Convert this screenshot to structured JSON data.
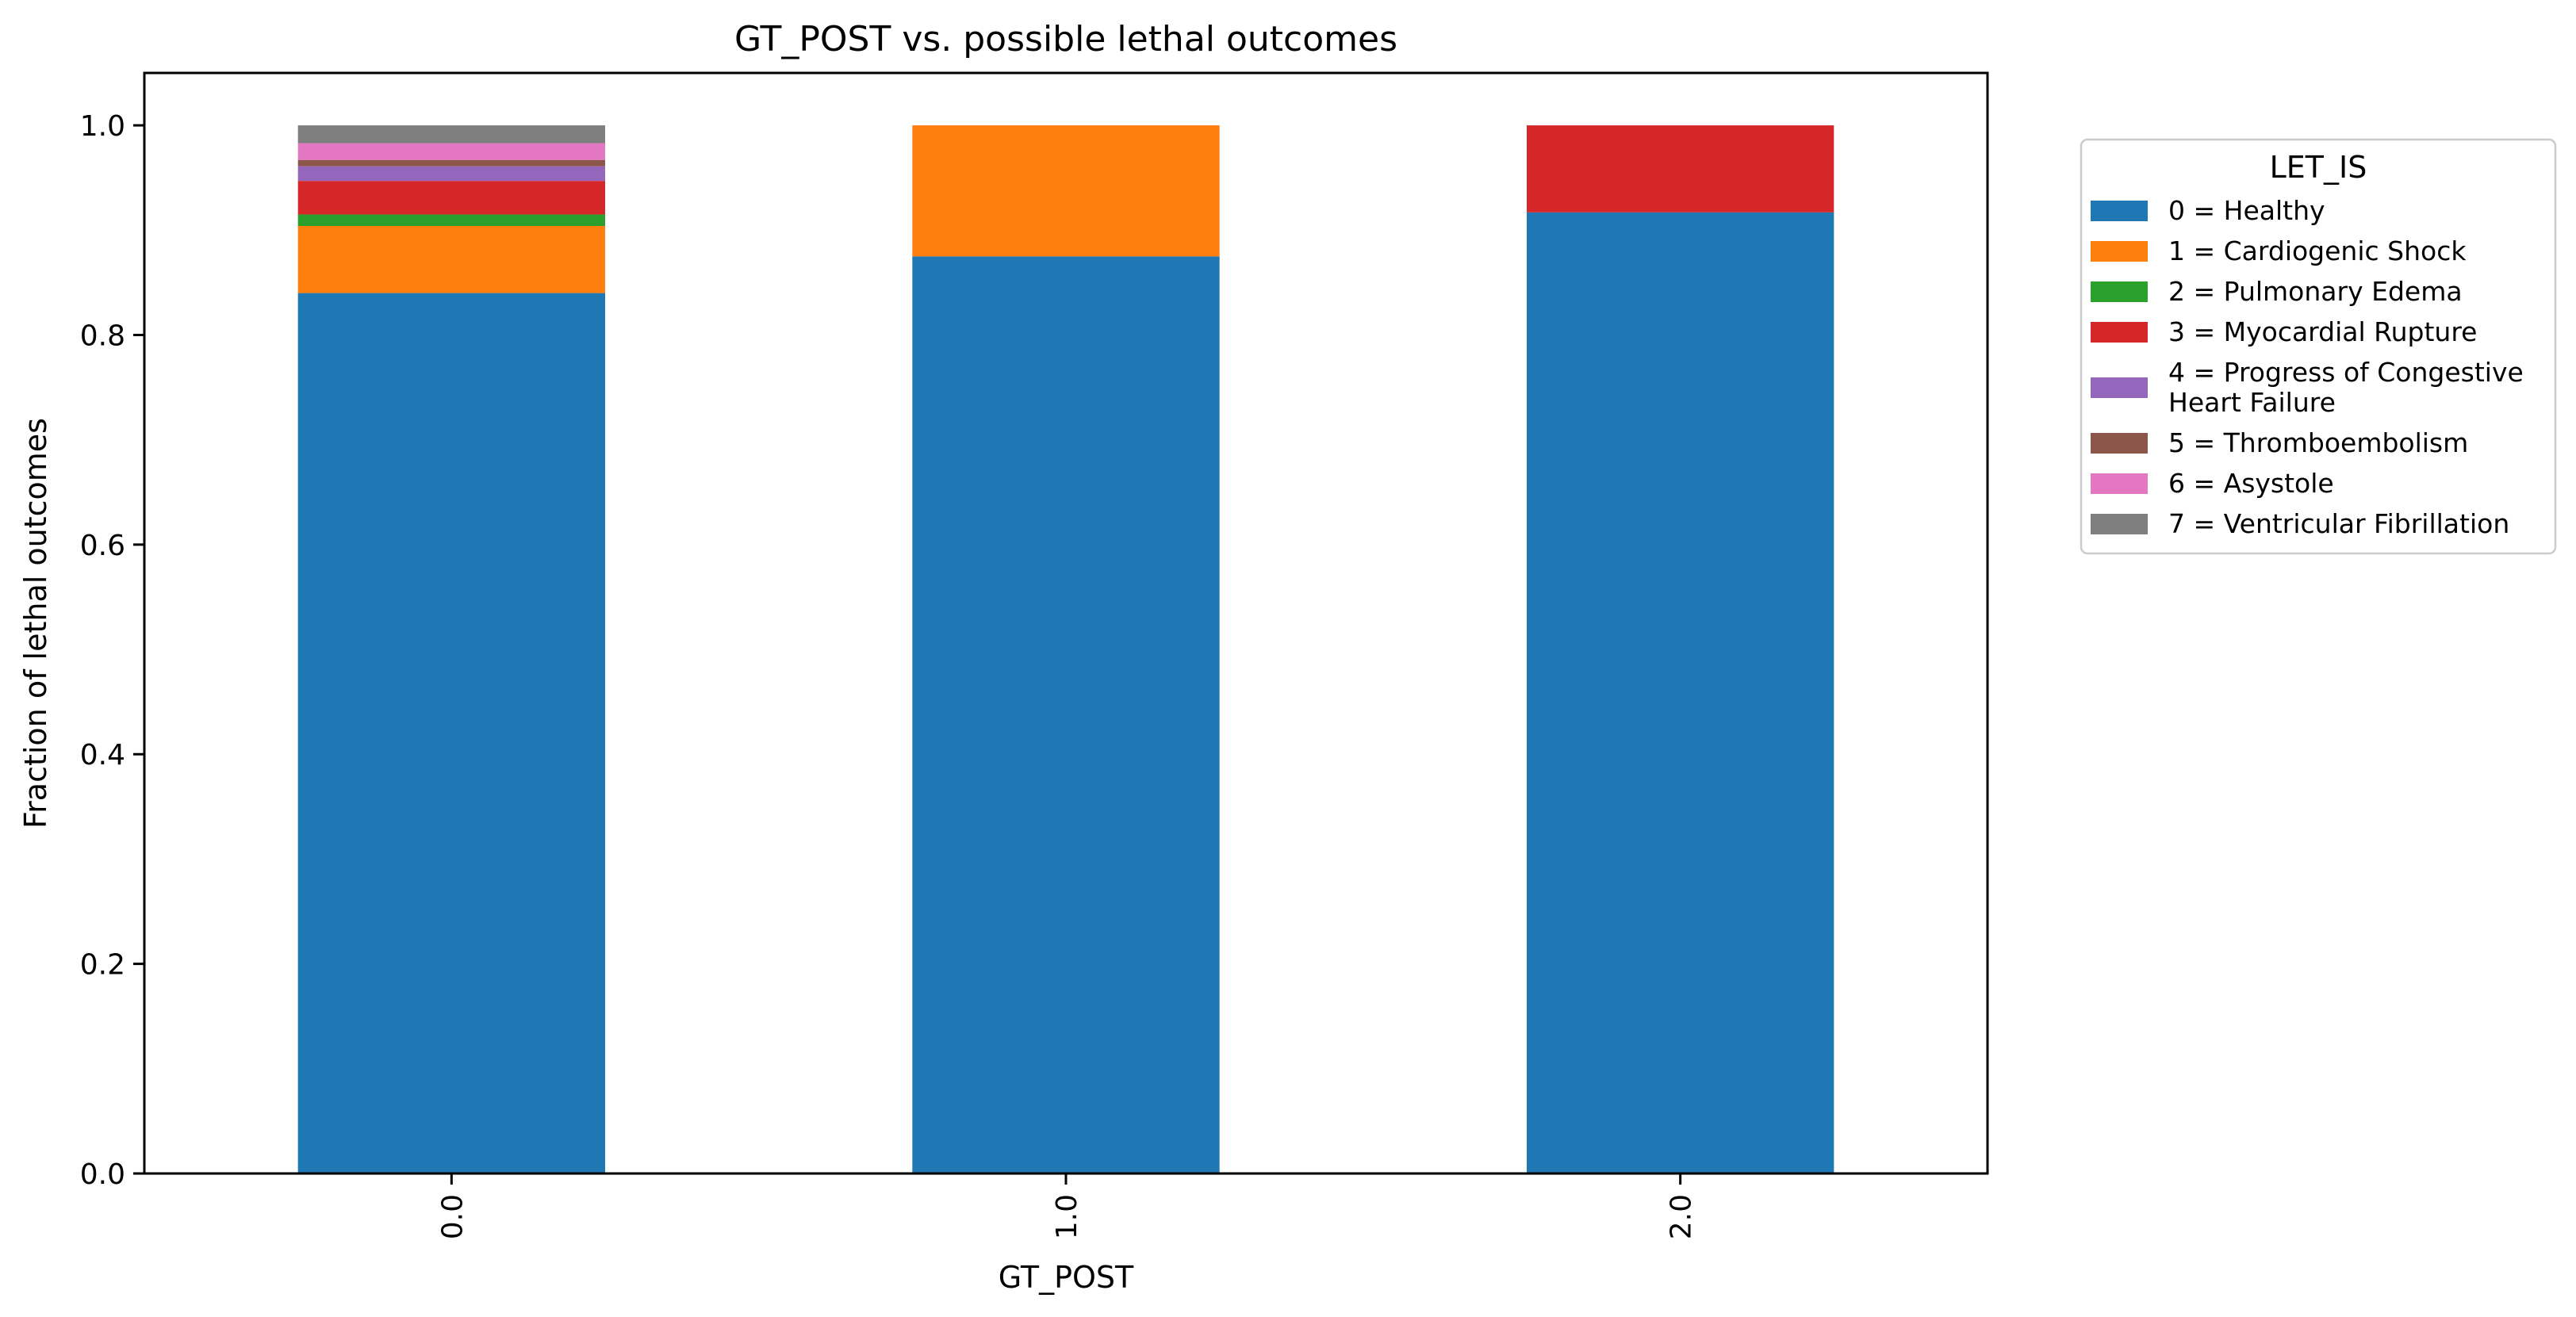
{
  "chart_data": {
    "type": "bar",
    "stacked": true,
    "title": "GT_POST vs. possible lethal outcomes",
    "xlabel": "GT_POST",
    "ylabel": "Fraction of lethal outcomes",
    "categories": [
      "0.0",
      "1.0",
      "2.0"
    ],
    "ylim": [
      0,
      1.05
    ],
    "yticks": [
      "0.0",
      "0.2",
      "0.4",
      "0.6",
      "0.8",
      "1.0"
    ],
    "grid": false,
    "legend": {
      "title": "LET_IS",
      "placement": "outside right, top"
    },
    "series": [
      {
        "name": "0 = Healthy",
        "color": "#1f77b4",
        "values": [
          0.84,
          0.875,
          0.917
        ]
      },
      {
        "name": "1 = Cardiogenic Shock",
        "color": "#ff7f0e",
        "values": [
          0.064,
          0.125,
          0.0
        ]
      },
      {
        "name": "2 = Pulmonary Edema",
        "color": "#2ca02c",
        "values": [
          0.011,
          0.0,
          0.0
        ]
      },
      {
        "name": "3 = Myocardial Rupture",
        "color": "#d62728",
        "values": [
          0.032,
          0.0,
          0.083
        ]
      },
      {
        "name": "4 = Progress of Congestive Heart Failure",
        "color": "#9467bd",
        "values": [
          0.014,
          0.0,
          0.0
        ]
      },
      {
        "name": "5 = Thromboembolism",
        "color": "#8c564b",
        "values": [
          0.006,
          0.0,
          0.0
        ]
      },
      {
        "name": "6 = Asystole",
        "color": "#e377c2",
        "values": [
          0.016,
          0.0,
          0.0
        ]
      },
      {
        "name": "7 = Ventricular Fibrillation",
        "color": "#7f7f7f",
        "values": [
          0.017,
          0.0,
          0.0
        ]
      }
    ]
  }
}
